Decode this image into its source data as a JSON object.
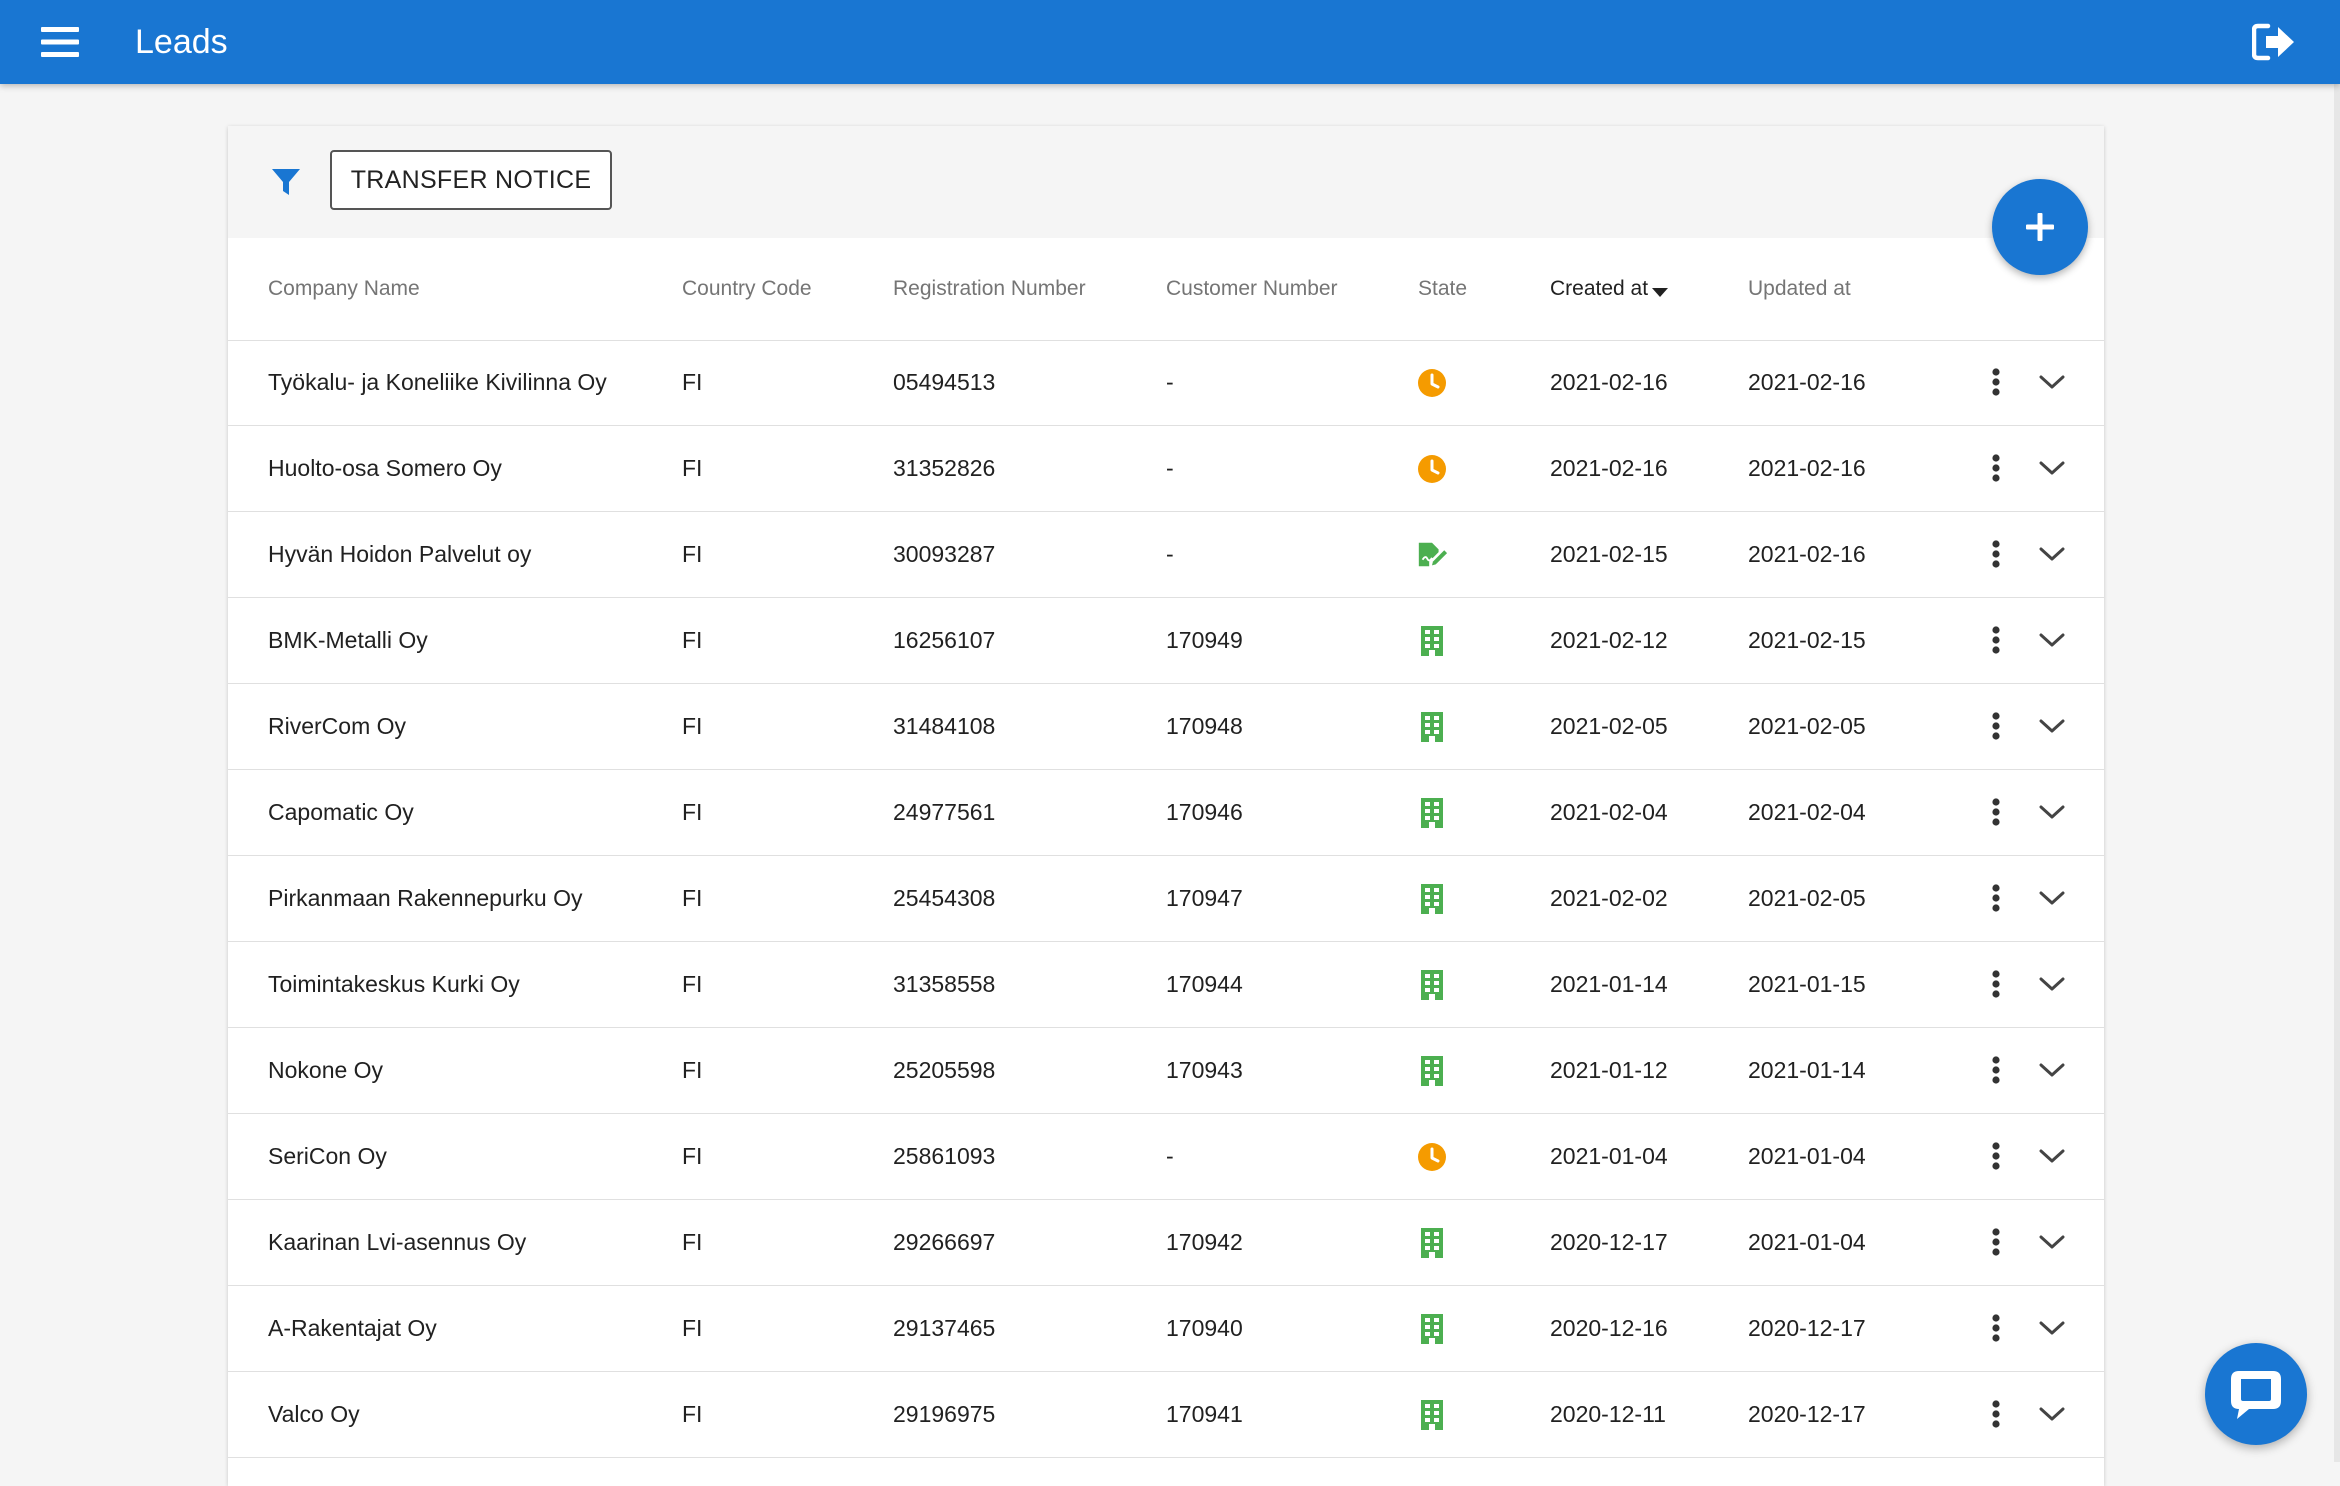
{
  "app": {
    "title": "Leads",
    "menu_icon": "hamburger-menu-icon",
    "logout_icon": "logout-icon"
  },
  "toolbar": {
    "filter_icon": "filter-icon",
    "transfer_notice_label": "TRANSFER NOTICE",
    "add_icon": "plus-icon"
  },
  "colors": {
    "primary": "#1976d2",
    "pending": "#f59b00",
    "approved": "#4caf50"
  },
  "table": {
    "columns": {
      "company_name": "Company Name",
      "country_code": "Country Code",
      "registration_number": "Registration Number",
      "customer_number": "Customer Number",
      "state": "State",
      "created_at": "Created at",
      "updated_at": "Updated at"
    },
    "sorted_by": "created_at",
    "sort_direction": "desc",
    "rows": [
      {
        "company": "Työkalu- ja Koneliike Kivilinna Oy",
        "country": "FI",
        "reg": "05494513",
        "customer": "-",
        "state": "pending",
        "state_icon": "clock-icon",
        "created": "2021-02-16",
        "updated": "2021-02-16"
      },
      {
        "company": "Huolto-osa Somero Oy",
        "country": "FI",
        "reg": "31352826",
        "customer": "-",
        "state": "pending",
        "state_icon": "clock-icon",
        "created": "2021-02-16",
        "updated": "2021-02-16"
      },
      {
        "company": "Hyvän Hoidon Palvelut oy",
        "country": "FI",
        "reg": "30093287",
        "customer": "-",
        "state": "signed",
        "state_icon": "signature-icon",
        "created": "2021-02-15",
        "updated": "2021-02-16"
      },
      {
        "company": "BMK-Metalli Oy",
        "country": "FI",
        "reg": "16256107",
        "customer": "170949",
        "state": "customer",
        "state_icon": "building-icon",
        "created": "2021-02-12",
        "updated": "2021-02-15"
      },
      {
        "company": "RiverCom Oy",
        "country": "FI",
        "reg": "31484108",
        "customer": "170948",
        "state": "customer",
        "state_icon": "building-icon",
        "created": "2021-02-05",
        "updated": "2021-02-05"
      },
      {
        "company": "Capomatic Oy",
        "country": "FI",
        "reg": "24977561",
        "customer": "170946",
        "state": "customer",
        "state_icon": "building-icon",
        "created": "2021-02-04",
        "updated": "2021-02-04"
      },
      {
        "company": "Pirkanmaan Rakennepurku Oy",
        "country": "FI",
        "reg": "25454308",
        "customer": "170947",
        "state": "customer",
        "state_icon": "building-icon",
        "created": "2021-02-02",
        "updated": "2021-02-05"
      },
      {
        "company": "Toimintakeskus Kurki Oy",
        "country": "FI",
        "reg": "31358558",
        "customer": "170944",
        "state": "customer",
        "state_icon": "building-icon",
        "created": "2021-01-14",
        "updated": "2021-01-15"
      },
      {
        "company": "Nokone Oy",
        "country": "FI",
        "reg": "25205598",
        "customer": "170943",
        "state": "customer",
        "state_icon": "building-icon",
        "created": "2021-01-12",
        "updated": "2021-01-14"
      },
      {
        "company": "SeriCon Oy",
        "country": "FI",
        "reg": "25861093",
        "customer": "-",
        "state": "pending",
        "state_icon": "clock-icon",
        "created": "2021-01-04",
        "updated": "2021-01-04"
      },
      {
        "company": "Kaarinan Lvi-asennus Oy",
        "country": "FI",
        "reg": "29266697",
        "customer": "170942",
        "state": "customer",
        "state_icon": "building-icon",
        "created": "2020-12-17",
        "updated": "2021-01-04"
      },
      {
        "company": "A-Rakentajat Oy",
        "country": "FI",
        "reg": "29137465",
        "customer": "170940",
        "state": "customer",
        "state_icon": "building-icon",
        "created": "2020-12-16",
        "updated": "2020-12-17"
      },
      {
        "company": "Valco Oy",
        "country": "FI",
        "reg": "29196975",
        "customer": "170941",
        "state": "customer",
        "state_icon": "building-icon",
        "created": "2020-12-11",
        "updated": "2020-12-17"
      }
    ]
  },
  "chat": {
    "icon": "chat-bubble-icon"
  }
}
